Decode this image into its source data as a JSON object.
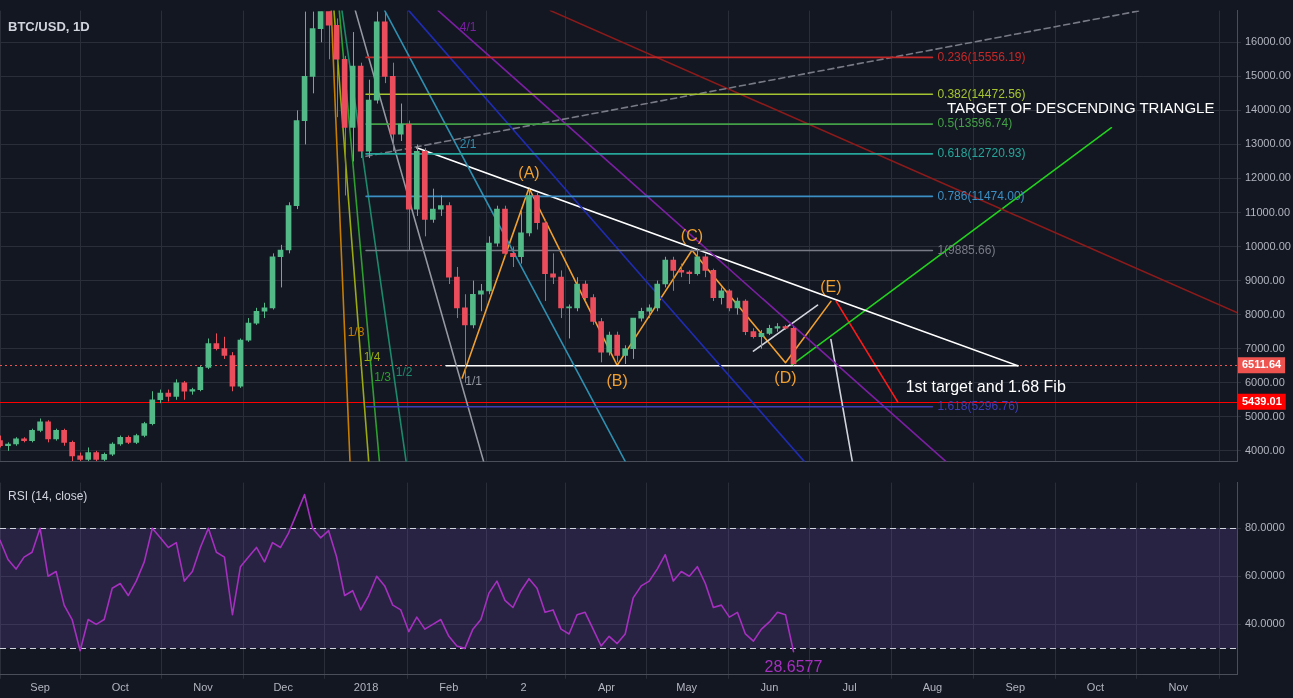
{
  "chart_data": [
    {
      "type": "candlestick",
      "title": "BTC/USD, 1D",
      "x": [
        "2017-08-17",
        "2017-08-20",
        "2017-08-23",
        "2017-08-26",
        "2017-08-29",
        "2017-09-01",
        "2017-09-04",
        "2017-09-07",
        "2017-09-10",
        "2017-09-13",
        "2017-09-16",
        "2017-09-19",
        "2017-09-22",
        "2017-09-25",
        "2017-09-28",
        "2017-10-01",
        "2017-10-04",
        "2017-10-07",
        "2017-10-10",
        "2017-10-13",
        "2017-10-16",
        "2017-10-19",
        "2017-10-22",
        "2017-10-25",
        "2017-10-28",
        "2017-10-31",
        "2017-11-03",
        "2017-11-06",
        "2017-11-09",
        "2017-11-12",
        "2017-11-15",
        "2017-11-18",
        "2017-11-21",
        "2017-11-24",
        "2017-11-27",
        "2017-11-30",
        "2017-12-03",
        "2017-12-06",
        "2017-12-09",
        "2017-12-12",
        "2017-12-15",
        "2017-12-18",
        "2017-12-21",
        "2017-12-24",
        "2017-12-27",
        "2017-12-30",
        "2018-01-02",
        "2018-01-05",
        "2018-01-08",
        "2018-01-11",
        "2018-01-14",
        "2018-01-17",
        "2018-01-20",
        "2018-01-23",
        "2018-01-26",
        "2018-01-29",
        "2018-02-01",
        "2018-02-04",
        "2018-02-07",
        "2018-02-10",
        "2018-02-13",
        "2018-02-16",
        "2018-02-19",
        "2018-02-22",
        "2018-02-25",
        "2018-02-28",
        "2018-03-03",
        "2018-03-06",
        "2018-03-09",
        "2018-03-12",
        "2018-03-15",
        "2018-03-18",
        "2018-03-21",
        "2018-03-24",
        "2018-03-27",
        "2018-03-30",
        "2018-04-02",
        "2018-04-05",
        "2018-04-08",
        "2018-04-11",
        "2018-04-14",
        "2018-04-17",
        "2018-04-20",
        "2018-04-23",
        "2018-04-26",
        "2018-04-29",
        "2018-05-02",
        "2018-05-05",
        "2018-05-08",
        "2018-05-11",
        "2018-05-14",
        "2018-05-17",
        "2018-05-20",
        "2018-05-23",
        "2018-05-26",
        "2018-05-29",
        "2018-06-01",
        "2018-06-04",
        "2018-06-07",
        "2018-06-10"
      ],
      "ohlc": [
        [
          4300,
          4450,
          4100,
          4150
        ],
        [
          4150,
          4250,
          4000,
          4200
        ],
        [
          4200,
          4400,
          4150,
          4350
        ],
        [
          4350,
          4400,
          4250,
          4300
        ],
        [
          4300,
          4650,
          4250,
          4600
        ],
        [
          4600,
          4950,
          4550,
          4850
        ],
        [
          4850,
          4900,
          4250,
          4350
        ],
        [
          4350,
          4650,
          4300,
          4600
        ],
        [
          4600,
          4650,
          4150,
          4250
        ],
        [
          4250,
          4300,
          3700,
          3850
        ],
        [
          3850,
          3950,
          3700,
          3750
        ],
        [
          3750,
          4100,
          3700,
          3950
        ],
        [
          3950,
          4000,
          3700,
          3750
        ],
        [
          3750,
          3950,
          3700,
          3900
        ],
        [
          3900,
          4250,
          3850,
          4200
        ],
        [
          4200,
          4450,
          4150,
          4400
        ],
        [
          4400,
          4450,
          4200,
          4250
        ],
        [
          4250,
          4500,
          4200,
          4450
        ],
        [
          4450,
          4850,
          4400,
          4800
        ],
        [
          4800,
          5750,
          4750,
          5500
        ],
        [
          5500,
          5800,
          5400,
          5700
        ],
        [
          5700,
          5800,
          5450,
          5600
        ],
        [
          5600,
          6100,
          5500,
          6000
        ],
        [
          6000,
          6050,
          5500,
          5750
        ],
        [
          5750,
          5850,
          5650,
          5800
        ],
        [
          5800,
          6500,
          5750,
          6450
        ],
        [
          6450,
          7300,
          6400,
          7150
        ],
        [
          7150,
          7450,
          6950,
          7000
        ],
        [
          7000,
          7350,
          6700,
          6800
        ],
        [
          6800,
          6900,
          5750,
          5900
        ],
        [
          5900,
          7300,
          5850,
          7250
        ],
        [
          7250,
          7900,
          7200,
          7750
        ],
        [
          7750,
          8200,
          7700,
          8100
        ],
        [
          8100,
          8350,
          7900,
          8200
        ],
        [
          8200,
          9800,
          8150,
          9700
        ],
        [
          9700,
          10050,
          8800,
          9900
        ],
        [
          9900,
          11300,
          9800,
          11200
        ],
        [
          11200,
          14000,
          11100,
          13700
        ],
        [
          13700,
          16900,
          13000,
          15000
        ],
        [
          15000,
          16900,
          14500,
          16400
        ],
        [
          16400,
          16900,
          16000,
          16900
        ],
        [
          16900,
          16900,
          15500,
          16500
        ],
        [
          16500,
          16700,
          13800,
          15500
        ],
        [
          15500,
          15600,
          11500,
          13500
        ],
        [
          13500,
          16300,
          12500,
          15300
        ],
        [
          15300,
          15400,
          12600,
          12800
        ],
        [
          12800,
          14900,
          12600,
          14300
        ],
        [
          14300,
          16900,
          14200,
          16600
        ],
        [
          16600,
          16900,
          14800,
          15000
        ],
        [
          15000,
          15400,
          12800,
          13300
        ],
        [
          13300,
          14200,
          13100,
          13600
        ],
        [
          13600,
          13700,
          9900,
          11100
        ],
        [
          11100,
          13000,
          10900,
          12800
        ],
        [
          12800,
          12900,
          10300,
          10800
        ],
        [
          10800,
          11700,
          10700,
          11100
        ],
        [
          11100,
          11500,
          10900,
          11200
        ],
        [
          11200,
          11300,
          8900,
          9100
        ],
        [
          9100,
          9400,
          7900,
          8200
        ],
        [
          8200,
          8600,
          6000,
          7700
        ],
        [
          7700,
          9000,
          7600,
          8600
        ],
        [
          8600,
          8900,
          8100,
          8700
        ],
        [
          8700,
          10300,
          8600,
          10100
        ],
        [
          10100,
          11200,
          10000,
          11100
        ],
        [
          11100,
          11200,
          9700,
          9800
        ],
        [
          9800,
          10000,
          9400,
          9700
        ],
        [
          9700,
          11100,
          9500,
          10400
        ],
        [
          10400,
          11700,
          10300,
          11500
        ],
        [
          11500,
          11600,
          10500,
          10700
        ],
        [
          10700,
          10800,
          8400,
          9200
        ],
        [
          9200,
          9800,
          8900,
          9100
        ],
        [
          9100,
          9300,
          7900,
          8200
        ],
        [
          8200,
          8300,
          7300,
          8200
        ],
        [
          8200,
          9100,
          8100,
          8900
        ],
        [
          8900,
          9000,
          8400,
          8500
        ],
        [
          8500,
          8600,
          7700,
          7800
        ],
        [
          7800,
          7900,
          6600,
          6900
        ],
        [
          6900,
          7500,
          6800,
          7400
        ],
        [
          7400,
          7500,
          6600,
          6800
        ],
        [
          6800,
          7100,
          6550,
          7000
        ],
        [
          7000,
          7900,
          6700,
          7900
        ],
        [
          7900,
          8200,
          7800,
          8100
        ],
        [
          8100,
          8300,
          7900,
          8200
        ],
        [
          8200,
          9000,
          8100,
          8900
        ],
        [
          8900,
          9700,
          8800,
          9600
        ],
        [
          9600,
          9700,
          8700,
          9300
        ],
        [
          9300,
          9500,
          9100,
          9250
        ],
        [
          9250,
          9300,
          8900,
          9200
        ],
        [
          9200,
          9950,
          9150,
          9700
        ],
        [
          9700,
          9800,
          9100,
          9300
        ],
        [
          9300,
          9350,
          8400,
          8500
        ],
        [
          8500,
          8800,
          8300,
          8700
        ],
        [
          8700,
          8750,
          8100,
          8200
        ],
        [
          8200,
          8500,
          8000,
          8400
        ],
        [
          8400,
          8450,
          7400,
          7500
        ],
        [
          7500,
          7600,
          7300,
          7350
        ],
        [
          7350,
          7550,
          7000,
          7450
        ],
        [
          7450,
          7700,
          7400,
          7600
        ],
        [
          7600,
          7750,
          7500,
          7650
        ],
        [
          7650,
          7700,
          7550,
          7600
        ],
        [
          7600,
          7650,
          6500,
          6550
        ]
      ],
      "colors": [
        "#eb4d5c",
        "#53b987",
        "#53b987",
        "#eb4d5c",
        "#53b987",
        "#53b987",
        "#eb4d5c",
        "#53b987",
        "#eb4d5c",
        "#eb4d5c",
        "#eb4d5c",
        "#53b987",
        "#eb4d5c",
        "#53b987",
        "#53b987",
        "#53b987",
        "#eb4d5c",
        "#53b987",
        "#53b987",
        "#53b987",
        "#53b987",
        "#eb4d5c",
        "#53b987",
        "#eb4d5c",
        "#53b987",
        "#53b987",
        "#53b987",
        "#eb4d5c",
        "#eb4d5c",
        "#eb4d5c",
        "#53b987",
        "#53b987",
        "#53b987",
        "#53b987",
        "#53b987",
        "#53b987",
        "#53b987",
        "#53b987",
        "#53b987",
        "#53b987",
        "#53b987",
        "#eb4d5c",
        "#eb4d5c",
        "#eb4d5c",
        "#53b987",
        "#eb4d5c",
        "#53b987",
        "#53b987",
        "#eb4d5c",
        "#eb4d5c",
        "#53b987",
        "#eb4d5c",
        "#53b987",
        "#eb4d5c",
        "#53b987",
        "#53b987",
        "#eb4d5c",
        "#eb4d5c",
        "#eb4d5c",
        "#53b987",
        "#53b987",
        "#53b987",
        "#53b987",
        "#eb4d5c",
        "#eb4d5c",
        "#53b987",
        "#53b987",
        "#eb4d5c",
        "#eb4d5c",
        "#eb4d5c",
        "#eb4d5c",
        "#53b987",
        "#53b987",
        "#eb4d5c",
        "#eb4d5c",
        "#eb4d5c",
        "#53b987",
        "#eb4d5c",
        "#53b987",
        "#53b987",
        "#53b987",
        "#53b987",
        "#53b987",
        "#53b987",
        "#eb4d5c",
        "#eb4d5c",
        "#eb4d5c",
        "#53b987",
        "#eb4d5c",
        "#eb4d5c",
        "#53b987",
        "#eb4d5c",
        "#53b987",
        "#eb4d5c",
        "#eb4d5c",
        "#53b987",
        "#53b987",
        "#53b987",
        "#eb4d5c",
        "#eb4d5c"
      ],
      "series": [
        {
          "type": "line",
          "name": "0.236(15556.19)",
          "color": "#c62828",
          "x": [
            "2018-01-01",
            "2018-08-01"
          ],
          "values": [
            15556.19,
            15556.19
          ]
        },
        {
          "type": "line",
          "name": "0.382(14472.56)",
          "color": "#a5c431",
          "x": [
            "2018-01-01",
            "2018-08-01"
          ],
          "values": [
            14472.56,
            14472.56
          ]
        },
        {
          "type": "line",
          "name": "0.5(13596.74)",
          "color": "#43a047",
          "x": [
            "2018-01-01",
            "2018-08-01"
          ],
          "values": [
            13596.74,
            13596.74
          ]
        },
        {
          "type": "line",
          "name": "0.618(12720.93)",
          "color": "#26a69a",
          "x": [
            "2018-01-01",
            "2018-08-01"
          ],
          "values": [
            12720.93,
            12720.93
          ]
        },
        {
          "type": "line",
          "name": "0.786(11474.00)",
          "color": "#3b8fc4",
          "x": [
            "2018-01-01",
            "2018-08-01"
          ],
          "values": [
            11474.0,
            11474.0
          ]
        },
        {
          "type": "line",
          "name": "1(9885.66)",
          "color": "#787b86",
          "x": [
            "2018-01-01",
            "2018-08-01"
          ],
          "values": [
            9885.66,
            9885.66
          ]
        },
        {
          "type": "line",
          "name": "1.618(5296.76)",
          "color": "#3f3fb5",
          "x": [
            "2018-01-01",
            "2018-08-01"
          ],
          "values": [
            5296.76,
            5296.76
          ]
        },
        {
          "type": "line",
          "color": "#787b86",
          "line_style": "dashed",
          "x": [
            "2018-01-01",
            "2018-10-18"
          ],
          "values": [
            12650,
            16930
          ]
        },
        {
          "type": "line",
          "color": "#9598a1",
          "x": [
            "2017-12-28",
            "2018-02-14"
          ],
          "values": [
            16930,
            3690
          ]
        },
        {
          "type": "line",
          "color": "#2e8fb0",
          "x": [
            "2018-01-08",
            "2018-04-08"
          ],
          "values": [
            16930,
            3690
          ]
        },
        {
          "type": "line",
          "color": "#1f2bb0",
          "x": [
            "2018-01-17",
            "2018-06-14"
          ],
          "values": [
            16930,
            3690
          ]
        },
        {
          "type": "line",
          "color": "#7b1fa2",
          "x": [
            "2018-01-28",
            "2018-08-06"
          ],
          "values": [
            16930,
            3690
          ]
        },
        {
          "type": "line",
          "color": "#8b1a1a",
          "x": [
            "2018-03-11",
            "2018-11-23"
          ],
          "values": [
            16930,
            8060
          ]
        },
        {
          "type": "line",
          "color": "#c77c02",
          "x": [
            "2017-12-19",
            "2017-12-26"
          ],
          "values": [
            16930,
            3690
          ]
        },
        {
          "type": "line",
          "color": "#9aaa10",
          "x": [
            "2017-12-20",
            "2018-01-02"
          ],
          "values": [
            16930,
            3690
          ]
        },
        {
          "type": "line",
          "color": "#2e9e2e",
          "x": [
            "2017-12-22",
            "2018-01-06"
          ],
          "values": [
            16930,
            3690
          ]
        },
        {
          "type": "line",
          "color": "#1c8a6a",
          "x": [
            "2017-12-23",
            "2018-01-16"
          ],
          "values": [
            16930,
            3690
          ]
        },
        {
          "type": "line",
          "color": "#ffffff",
          "x": [
            "2018-01-20",
            "2018-09-02"
          ],
          "values": [
            12900,
            6500
          ]
        },
        {
          "type": "line",
          "color": "#ffffff",
          "x": [
            "2018-01-31",
            "2018-09-02"
          ],
          "values": [
            6500,
            6500
          ]
        },
        {
          "type": "line",
          "color": "#d1d4dc",
          "x": [
            "2018-06-24",
            "2018-07-02"
          ],
          "values": [
            7270,
            3690
          ]
        },
        {
          "type": "line",
          "color": "#d1d4dc",
          "x": [
            "2018-05-26",
            "2018-06-19"
          ],
          "values": [
            6930,
            8280
          ]
        },
        {
          "type": "line",
          "color": "#f0a030",
          "x": [
            "2018-02-06",
            "2018-03-03",
            "2018-04-05",
            "2018-05-03",
            "2018-06-07",
            "2018-06-24"
          ],
          "values": [
            6140,
            11720,
            6510,
            9890,
            6590,
            8390
          ],
          "value_labels": [
            null,
            "(A)",
            "(B)",
            "(C)",
            "(D)",
            "(E)"
          ]
        },
        {
          "type": "line",
          "color": "#22d01e",
          "x": [
            "2018-06-09",
            "2018-10-07"
          ],
          "values": [
            6500,
            13490
          ]
        },
        {
          "type": "line",
          "color": "#ff1a1a",
          "x": [
            "2018-06-26",
            "2018-07-19"
          ],
          "values": [
            8390,
            5440
          ]
        }
      ],
      "ref_lines": [
        {
          "axis": "y",
          "value": 6511.64,
          "label": "6511.64",
          "color": "#ef5350",
          "line_style": "dotted"
        },
        {
          "axis": "y",
          "value": 5439.01,
          "label": "5439.01",
          "color": "#ff0000"
        }
      ],
      "annotations": [
        "TARGET OF DESCENDING TRIANGLE",
        {
          "text": "1st target and 1.68 Fib",
          "x": "2018-07-19",
          "y": 5440
        },
        {
          "text": "1/1",
          "x": "2018-02-06",
          "y": 6030
        },
        {
          "text": "2/1",
          "x": "2018-02-04",
          "y": 13000
        },
        {
          "text": "4/1",
          "x": "2018-02-04",
          "y": 16440
        },
        {
          "text": "1/8",
          "x": "2017-12-24",
          "y": 7470
        },
        {
          "text": "1/4",
          "x": "2017-12-30",
          "y": 6740
        },
        {
          "text": "1/3",
          "x": "2018-01-03",
          "y": 6150
        },
        {
          "text": "1/2",
          "x": "2018-01-11",
          "y": 6290
        }
      ],
      "xlim": [
        "2017-08-17",
        "2018-11-23"
      ],
      "xticks": [
        {
          "value": "2017-09-01",
          "label": null
        },
        {
          "value": "2017-10-01",
          "label": null
        },
        {
          "value": "2017-11-01",
          "label": null
        },
        {
          "value": "2017-12-01",
          "label": null
        },
        {
          "value": "2018-01-01",
          "label": null
        },
        {
          "value": "2018-02-01",
          "label": null
        },
        {
          "value": "2018-03-01",
          "label": null
        },
        {
          "value": "2018-04-01",
          "label": null
        },
        {
          "value": "2018-05-01",
          "label": null
        },
        {
          "value": "2018-06-01",
          "label": null
        },
        {
          "value": "2018-07-01",
          "label": null
        },
        {
          "value": "2018-08-01",
          "label": null
        },
        {
          "value": "2018-09-01",
          "label": null
        },
        {
          "value": "2018-10-01",
          "label": null
        },
        {
          "value": "2018-11-01",
          "label": null
        }
      ],
      "ylim": [
        3690,
        16930
      ],
      "yticks": [
        {
          "value": 4000,
          "label": "4000.00"
        },
        {
          "value": 5000,
          "label": "5000.00"
        },
        {
          "value": 6000,
          "label": "6000.00"
        },
        {
          "value": 7000,
          "label": "7000.00"
        },
        {
          "value": 8000,
          "label": "8000.00"
        },
        {
          "value": 9000,
          "label": "9000.00"
        },
        {
          "value": 10000,
          "label": "10000.00"
        },
        {
          "value": 11000,
          "label": "11000.00"
        },
        {
          "value": 12000,
          "label": "12000.00"
        },
        {
          "value": 13000,
          "label": "13000.00"
        },
        {
          "value": 14000,
          "label": "14000.00"
        },
        {
          "value": 15000,
          "label": "15000.00"
        },
        {
          "value": 16000,
          "label": "16000.00"
        }
      ],
      "tick_labels": "y",
      "grid": true,
      "marker": "none"
    },
    {
      "type": "line",
      "title": "RSI (14, close)",
      "color": "#a62fc0",
      "x": [
        "2017-08-17",
        "2017-08-20",
        "2017-08-23",
        "2017-08-26",
        "2017-08-29",
        "2017-09-01",
        "2017-09-04",
        "2017-09-07",
        "2017-09-10",
        "2017-09-13",
        "2017-09-16",
        "2017-09-19",
        "2017-09-22",
        "2017-09-25",
        "2017-09-28",
        "2017-10-01",
        "2017-10-04",
        "2017-10-07",
        "2017-10-10",
        "2017-10-13",
        "2017-10-16",
        "2017-10-19",
        "2017-10-22",
        "2017-10-25",
        "2017-10-28",
        "2017-10-31",
        "2017-11-03",
        "2017-11-06",
        "2017-11-09",
        "2017-11-12",
        "2017-11-15",
        "2017-11-18",
        "2017-11-21",
        "2017-11-24",
        "2017-11-27",
        "2017-11-30",
        "2017-12-03",
        "2017-12-06",
        "2017-12-09",
        "2017-12-12",
        "2017-12-15",
        "2017-12-18",
        "2017-12-21",
        "2017-12-24",
        "2017-12-27",
        "2017-12-30",
        "2018-01-02",
        "2018-01-05",
        "2018-01-08",
        "2018-01-11",
        "2018-01-14",
        "2018-01-17",
        "2018-01-20",
        "2018-01-23",
        "2018-01-26",
        "2018-01-29",
        "2018-02-01",
        "2018-02-04",
        "2018-02-07",
        "2018-02-10",
        "2018-02-13",
        "2018-02-16",
        "2018-02-19",
        "2018-02-22",
        "2018-02-25",
        "2018-02-28",
        "2018-03-03",
        "2018-03-06",
        "2018-03-09",
        "2018-03-12",
        "2018-03-15",
        "2018-03-18",
        "2018-03-21",
        "2018-03-24",
        "2018-03-27",
        "2018-03-30",
        "2018-04-02",
        "2018-04-05",
        "2018-04-08",
        "2018-04-11",
        "2018-04-14",
        "2018-04-17",
        "2018-04-20",
        "2018-04-23",
        "2018-04-26",
        "2018-04-29",
        "2018-05-02",
        "2018-05-05",
        "2018-05-08",
        "2018-05-11",
        "2018-05-14",
        "2018-05-17",
        "2018-05-20",
        "2018-05-23",
        "2018-05-26",
        "2018-05-29",
        "2018-06-01",
        "2018-06-04",
        "2018-06-07",
        "2018-06-10"
      ],
      "values": [
        75,
        67,
        63,
        68,
        70,
        80,
        60,
        62,
        48,
        42,
        29,
        42,
        40,
        42,
        55,
        57,
        52,
        58,
        66,
        80,
        76,
        72,
        74,
        58,
        62,
        72,
        80,
        70,
        68,
        44,
        64,
        68,
        72,
        66,
        74,
        72,
        78,
        86,
        94,
        80,
        76,
        79,
        68,
        52,
        54,
        46,
        52,
        60,
        56,
        48,
        46,
        37,
        43,
        38,
        40,
        42,
        35,
        31,
        30,
        38,
        42,
        53,
        58,
        50,
        47,
        54,
        59,
        55,
        45,
        46,
        38,
        36,
        44,
        45,
        38,
        31,
        35,
        32,
        36,
        51,
        56,
        58,
        63,
        69,
        58,
        62,
        60,
        64,
        57,
        47,
        48,
        43,
        45,
        36,
        33,
        38,
        41,
        45,
        44,
        28.6577
      ],
      "value_labels": [
        null,
        null,
        null,
        null,
        null,
        null,
        null,
        null,
        null,
        null,
        null,
        null,
        null,
        null,
        null,
        null,
        null,
        null,
        null,
        null,
        null,
        null,
        null,
        null,
        null,
        null,
        null,
        null,
        null,
        null,
        null,
        null,
        null,
        null,
        null,
        null,
        null,
        null,
        null,
        null,
        null,
        null,
        null,
        null,
        null,
        null,
        null,
        null,
        null,
        null,
        null,
        null,
        null,
        null,
        null,
        null,
        null,
        null,
        null,
        null,
        null,
        null,
        null,
        null,
        null,
        null,
        null,
        null,
        null,
        null,
        null,
        null,
        null,
        null,
        null,
        null,
        null,
        null,
        null,
        null,
        null,
        null,
        null,
        null,
        null,
        null,
        null,
        null,
        null,
        null,
        null,
        null,
        null,
        null,
        null,
        null,
        null,
        null,
        null,
        "28.6577"
      ],
      "ref_lines": [
        {
          "axis": "y",
          "value": 80,
          "color": "#d1d4dc",
          "line_style": "dashed"
        },
        {
          "axis": "y",
          "value": 30,
          "color": "#d1d4dc",
          "line_style": "dashed"
        }
      ],
      "bands": [
        {
          "axis": "y",
          "from": 30,
          "to": 80,
          "color": "#7e57c2"
        }
      ],
      "xlim": [
        "2017-08-17",
        "2018-11-23"
      ],
      "xticks": [
        {
          "value": "2017-09-01",
          "label": "Sep"
        },
        {
          "value": "2017-10-01",
          "label": "Oct"
        },
        {
          "value": "2017-11-01",
          "label": "Nov"
        },
        {
          "value": "2017-12-01",
          "label": "Dec"
        },
        {
          "value": "2018-01-01",
          "label": "2018"
        },
        {
          "value": "2018-02-01",
          "label": "Feb"
        },
        {
          "value": "2018-03-01",
          "label": "2"
        },
        {
          "value": "2018-04-01",
          "label": "Apr"
        },
        {
          "value": "2018-05-01",
          "label": "May"
        },
        {
          "value": "2018-06-01",
          "label": "Jun"
        },
        {
          "value": "2018-07-01",
          "label": "Jul"
        },
        {
          "value": "2018-08-01",
          "label": "Aug"
        },
        {
          "value": "2018-09-01",
          "label": "Sep"
        },
        {
          "value": "2018-10-01",
          "label": "Oct"
        },
        {
          "value": "2018-11-01",
          "label": "Nov"
        }
      ],
      "ylim": [
        19,
        99
      ],
      "yticks": [
        {
          "value": 40,
          "label": "40.0000"
        },
        {
          "value": 60,
          "label": "60.0000"
        },
        {
          "value": 80,
          "label": "80.0000"
        }
      ],
      "grid": true,
      "marker": "none"
    }
  ]
}
